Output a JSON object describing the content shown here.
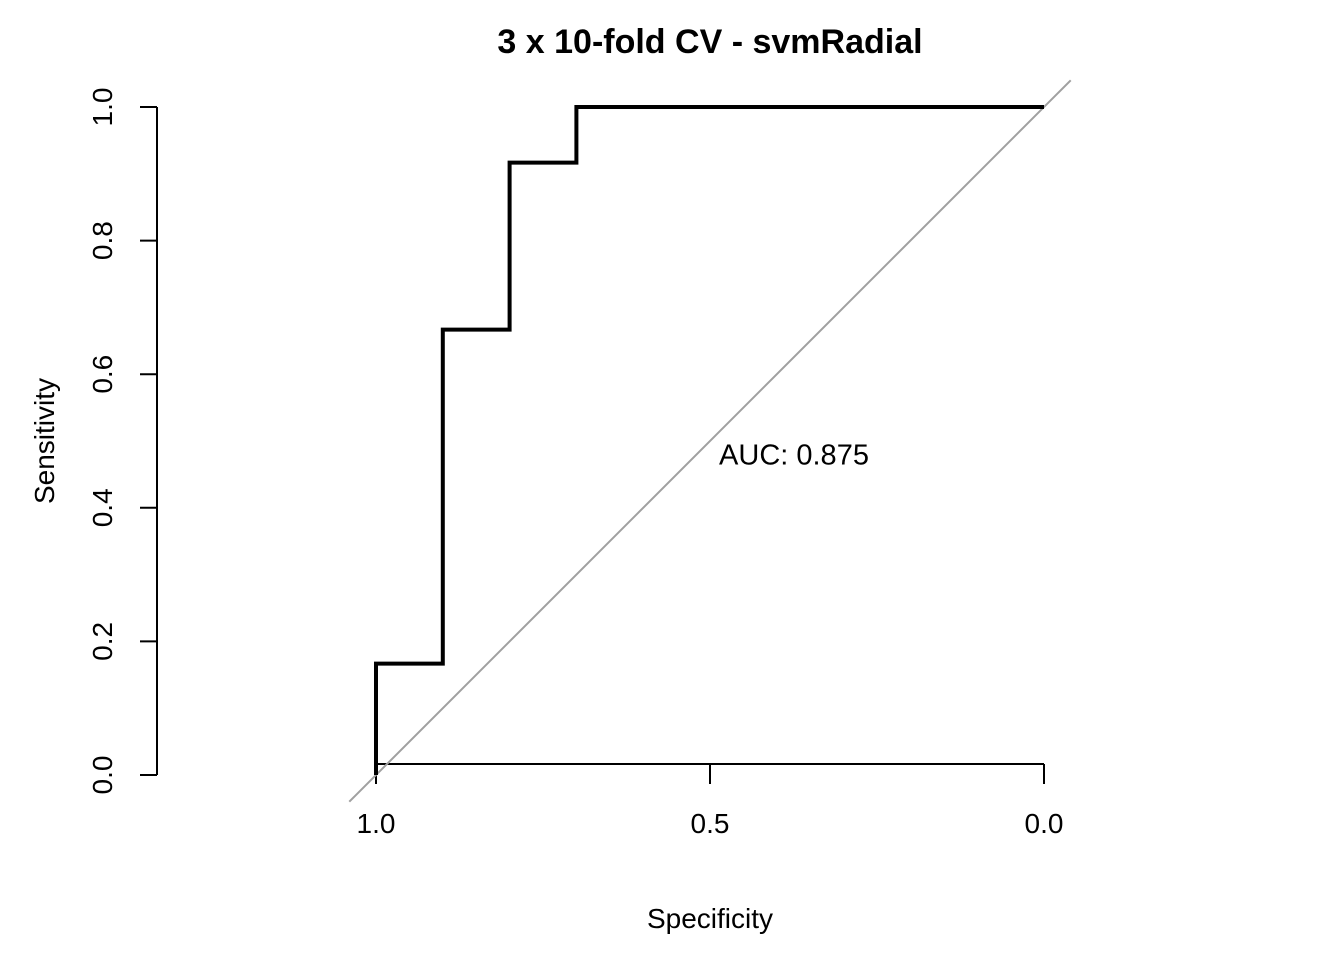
{
  "chart_data": {
    "type": "line",
    "title": "3 x 10-fold CV - svmRadial",
    "xlabel": "Specificity",
    "ylabel": "Sensitivity",
    "x_reversed": true,
    "xlim": [
      1.0,
      0.0
    ],
    "ylim": [
      0.0,
      1.0
    ],
    "x_ticks": [
      "1.0",
      "0.5",
      "0.0"
    ],
    "x_tick_values": [
      1.0,
      0.5,
      0.0
    ],
    "y_ticks": [
      "0.0",
      "0.2",
      "0.4",
      "0.6",
      "0.8",
      "1.0"
    ],
    "y_tick_values": [
      0.0,
      0.2,
      0.4,
      0.6,
      0.8,
      1.0
    ],
    "grid": false,
    "series": [
      {
        "specificity": [
          1.0,
          1.0,
          0.9,
          0.9,
          0.8,
          0.8,
          0.7,
          0.7,
          0.0
        ],
        "sensitivity": [
          0.0,
          0.1667,
          0.1667,
          0.6667,
          0.6667,
          0.9167,
          0.9167,
          1.0,
          1.0
        ],
        "color": "#000000"
      }
    ],
    "reference_line": {
      "from": [
        1.0,
        0.0
      ],
      "to": [
        0.0,
        1.0
      ],
      "color": "#a0a0a0"
    },
    "annotation": {
      "text": "AUC: 0.875",
      "x": 0.5,
      "y": 0.48
    }
  }
}
